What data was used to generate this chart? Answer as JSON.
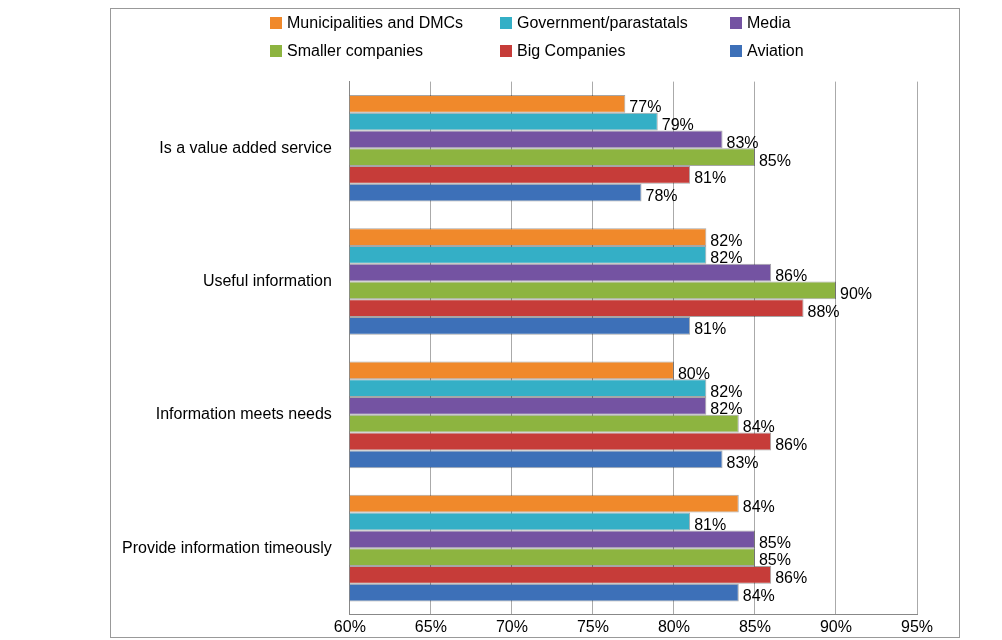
{
  "chart_data": {
    "type": "bar",
    "orientation": "horizontal",
    "categories": [
      "Is a value added service",
      "Useful information",
      "Information meets needs",
      "Provide information timeously"
    ],
    "series": [
      {
        "name": "Municipalities and DMCs",
        "color": "#f0892b",
        "values": [
          77,
          82,
          80,
          84
        ],
        "value_labels": [
          "77%",
          "82%",
          "80%",
          "84%"
        ]
      },
      {
        "name": "Government/parastatals",
        "color": "#34afc6",
        "values": [
          79,
          82,
          82,
          81
        ],
        "value_labels": [
          "79%",
          "82%",
          "82%",
          "81%"
        ]
      },
      {
        "name": "Media",
        "color": "#7453a2",
        "values": [
          83,
          86,
          82,
          85
        ],
        "value_labels": [
          "83%",
          "86%",
          "82%",
          "85%"
        ]
      },
      {
        "name": "Smaller companies",
        "color": "#8db440",
        "values": [
          85,
          90,
          84,
          85
        ],
        "value_labels": [
          "85%",
          "90%",
          "84%",
          "85%"
        ]
      },
      {
        "name": "Big Companies",
        "color": "#c63c39",
        "values": [
          81,
          88,
          86,
          86
        ],
        "value_labels": [
          "81%",
          "88%",
          "86%",
          "86%"
        ]
      },
      {
        "name": "Aviation",
        "color": "#3d70b8",
        "values": [
          78,
          81,
          83,
          84
        ],
        "value_labels": [
          "78%",
          "81%",
          "83%",
          "84%"
        ]
      }
    ],
    "xlim": [
      60,
      95
    ],
    "xticks": [
      {
        "value": 60,
        "label": "60%"
      },
      {
        "value": 65,
        "label": "65%"
      },
      {
        "value": 70,
        "label": "70%"
      },
      {
        "value": 75,
        "label": "75%"
      },
      {
        "value": 80,
        "label": "80%"
      },
      {
        "value": 85,
        "label": "85%"
      },
      {
        "value": 90,
        "label": "90%"
      },
      {
        "value": 95,
        "label": "95%"
      }
    ],
    "grid": "x",
    "legend": "top"
  }
}
